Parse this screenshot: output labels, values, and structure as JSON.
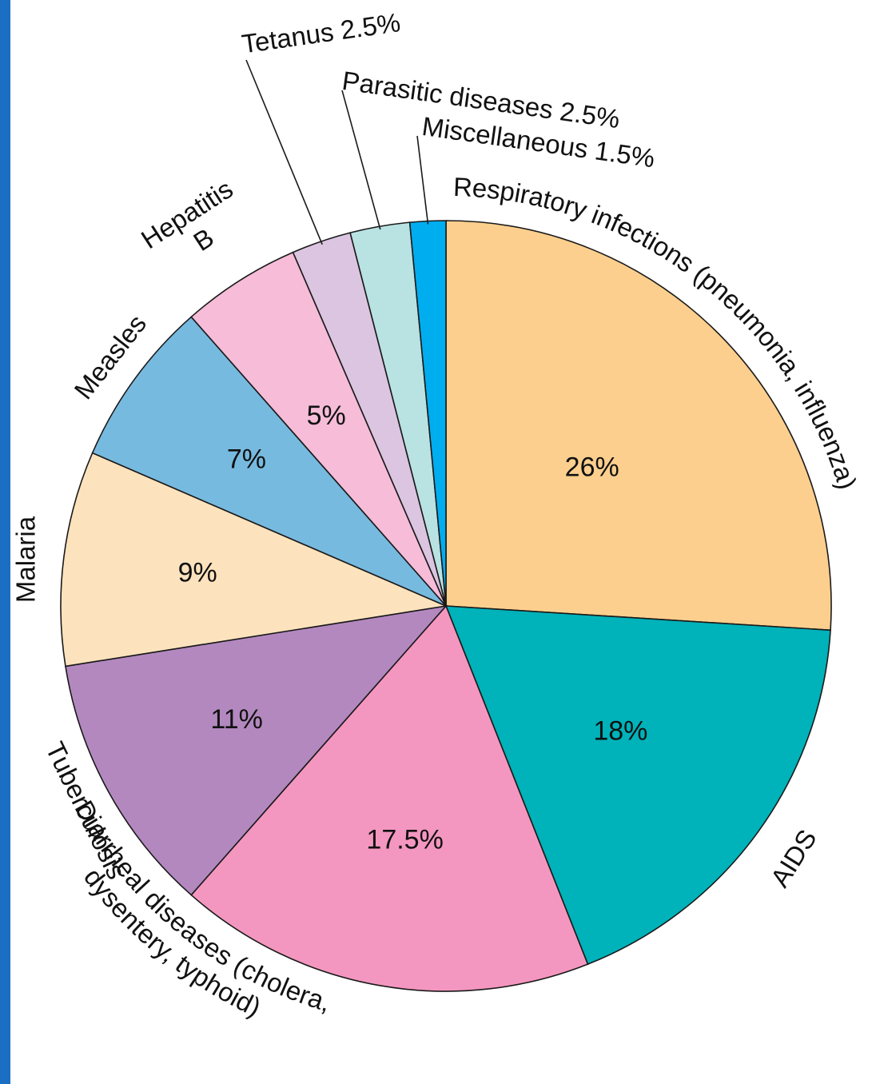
{
  "chart_data": {
    "type": "pie",
    "title": "",
    "start_angle_deg": 0,
    "direction": "clockwise",
    "slices": [
      {
        "label": "Respiratory infections (pneumonia, influenza)",
        "value": 26,
        "value_label": "26%",
        "color": "#fdcf8e"
      },
      {
        "label": "AIDS",
        "value": 18,
        "value_label": "18%",
        "color": "#00b2b9"
      },
      {
        "label": "Diarrheal diseases (cholera, dysentery, typhoid)",
        "value": 17.5,
        "value_label": "17.5%",
        "color": "#f497c0"
      },
      {
        "label": "Tuberculosis",
        "value": 11,
        "value_label": "11%",
        "color": "#b388bf"
      },
      {
        "label": "Malaria",
        "value": 9,
        "value_label": "9%",
        "color": "#fde3bd"
      },
      {
        "label": "Measles",
        "value": 7,
        "value_label": "7%",
        "color": "#77badf"
      },
      {
        "label": "Hepatitis B",
        "value": 5,
        "value_label": "5%",
        "color": "#f6bcd8"
      },
      {
        "label": "Tetanus 2.5%",
        "value": 2.5,
        "value_label": "",
        "color": "#dbc5e1"
      },
      {
        "label": "Parasitic diseases 2.5%",
        "value": 2.5,
        "value_label": "",
        "color": "#b9e2e2"
      },
      {
        "label": "Miscellaneous 1.5%",
        "value": 1.5,
        "value_label": "",
        "color": "#00adef"
      }
    ]
  }
}
